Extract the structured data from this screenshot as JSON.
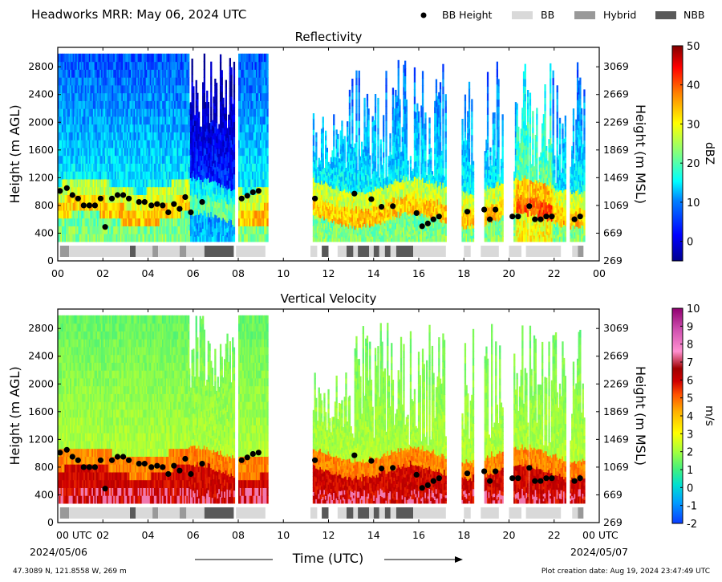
{
  "header": {
    "title": "Headworks MRR:  May 06, 2024 UTC",
    "legend": [
      {
        "label": "BB Height",
        "symbol": "dot",
        "color": "#000000"
      },
      {
        "label": "BB",
        "symbol": "box",
        "color": "#d9d9d9"
      },
      {
        "label": "Hybrid",
        "symbol": "box",
        "color": "#999999"
      },
      {
        "label": "NBB",
        "symbol": "box",
        "color": "#595959"
      }
    ]
  },
  "footer": {
    "location": "47.3089 N, 121.8558 W, 269 m",
    "created": "Plot creation date: Aug 19, 2024 23:47:49 UTC",
    "xlabel": "Time (UTC)",
    "start_date": "2024/05/06",
    "end_date": "2024/05/07"
  },
  "chart_data": [
    {
      "type": "heatmap",
      "title": "Reflectivity",
      "xlabel": "Time (UTC)",
      "ylabel": "Height (m AGL)",
      "ylabel_right": "Height (m MSL)",
      "colorbar_label": "dBZ",
      "x_ticks": [
        "00",
        "02",
        "04",
        "06",
        "08",
        "10",
        "12",
        "14",
        "16",
        "18",
        "20",
        "22",
        "00"
      ],
      "x_range": [
        0,
        24
      ],
      "y_range": [
        0,
        3000
      ],
      "y_ticks": [
        0,
        400,
        800,
        1200,
        1600,
        2000,
        2400,
        2800
      ],
      "y_ticks_right": [
        269,
        669,
        1069,
        1469,
        1869,
        2269,
        2669,
        3069
      ],
      "colorbar_ticks": [
        0,
        10,
        20,
        30,
        40,
        50
      ],
      "colorbar_range": [
        -5,
        50
      ],
      "data_segments_hours": [
        [
          0,
          5.8
        ],
        [
          5.8,
          7.8
        ],
        [
          8.0,
          9.3
        ],
        [
          11.3,
          12.9
        ],
        [
          12.9,
          17.2
        ],
        [
          17.9,
          18.4
        ],
        [
          18.9,
          19.7
        ],
        [
          20.2,
          20.8
        ],
        [
          20.9,
          22.5
        ],
        [
          22.7,
          23.3
        ]
      ]
    },
    {
      "type": "heatmap",
      "title": "Vertical Velocity",
      "xlabel": "Time (UTC)",
      "ylabel": "Height (m AGL)",
      "ylabel_right": "Height (m MSL)",
      "colorbar_label": "m/s",
      "x_ticks": [
        "00 UTC",
        "02",
        "04",
        "06",
        "08",
        "10",
        "12",
        "14",
        "16",
        "18",
        "20",
        "22",
        "00 UTC"
      ],
      "x_range": [
        0,
        24
      ],
      "y_range": [
        0,
        3000
      ],
      "y_ticks": [
        0,
        400,
        800,
        1200,
        1600,
        2000,
        2400,
        2800
      ],
      "y_ticks_right": [
        269,
        669,
        1069,
        1469,
        1869,
        2269,
        2669,
        3069
      ],
      "colorbar_ticks": [
        -2,
        -1,
        0,
        1,
        2,
        3,
        4,
        5,
        6,
        7,
        8,
        9,
        10
      ],
      "colorbar_range": [
        -2,
        10
      ],
      "data_segments_hours": [
        [
          0,
          5.8
        ],
        [
          5.8,
          7.8
        ],
        [
          8.0,
          9.3
        ],
        [
          11.3,
          12.9
        ],
        [
          12.9,
          17.2
        ],
        [
          17.9,
          18.4
        ],
        [
          18.9,
          19.7
        ],
        [
          20.2,
          20.8
        ],
        [
          20.9,
          22.5
        ],
        [
          22.7,
          23.3
        ]
      ]
    }
  ],
  "bb_height_points": [
    {
      "t": 0.1,
      "h": 1010
    },
    {
      "t": 0.4,
      "h": 1050
    },
    {
      "t": 0.65,
      "h": 950
    },
    {
      "t": 0.9,
      "h": 900
    },
    {
      "t": 1.15,
      "h": 800
    },
    {
      "t": 1.4,
      "h": 800
    },
    {
      "t": 1.65,
      "h": 800
    },
    {
      "t": 1.9,
      "h": 900
    },
    {
      "t": 2.1,
      "h": 490
    },
    {
      "t": 2.4,
      "h": 900
    },
    {
      "t": 2.65,
      "h": 950
    },
    {
      "t": 2.9,
      "h": 950
    },
    {
      "t": 3.15,
      "h": 900
    },
    {
      "t": 3.6,
      "h": 850
    },
    {
      "t": 3.85,
      "h": 850
    },
    {
      "t": 4.15,
      "h": 800
    },
    {
      "t": 4.4,
      "h": 820
    },
    {
      "t": 4.65,
      "h": 800
    },
    {
      "t": 4.9,
      "h": 700
    },
    {
      "t": 5.15,
      "h": 820
    },
    {
      "t": 5.4,
      "h": 750
    },
    {
      "t": 5.65,
      "h": 920
    },
    {
      "t": 5.9,
      "h": 700
    },
    {
      "t": 6.4,
      "h": 850
    },
    {
      "t": 8.15,
      "h": 900
    },
    {
      "t": 8.4,
      "h": 940
    },
    {
      "t": 8.65,
      "h": 990
    },
    {
      "t": 8.9,
      "h": 1010
    },
    {
      "t": 11.4,
      "h": 900
    },
    {
      "t": 13.15,
      "h": 970
    },
    {
      "t": 13.9,
      "h": 890
    },
    {
      "t": 14.35,
      "h": 780
    },
    {
      "t": 14.85,
      "h": 790
    },
    {
      "t": 15.9,
      "h": 690
    },
    {
      "t": 16.15,
      "h": 500
    },
    {
      "t": 16.4,
      "h": 540
    },
    {
      "t": 16.65,
      "h": 600
    },
    {
      "t": 16.9,
      "h": 640
    },
    {
      "t": 18.15,
      "h": 710
    },
    {
      "t": 18.9,
      "h": 740
    },
    {
      "t": 19.15,
      "h": 600
    },
    {
      "t": 19.4,
      "h": 740
    },
    {
      "t": 20.15,
      "h": 640
    },
    {
      "t": 20.4,
      "h": 640
    },
    {
      "t": 20.9,
      "h": 790
    },
    {
      "t": 21.15,
      "h": 600
    },
    {
      "t": 21.4,
      "h": 600
    },
    {
      "t": 21.65,
      "h": 640
    },
    {
      "t": 21.9,
      "h": 640
    },
    {
      "t": 22.9,
      "h": 600
    },
    {
      "t": 23.15,
      "h": 640
    }
  ],
  "classification_bars": [
    {
      "start": 0.1,
      "end": 0.5,
      "cls": "Hybrid"
    },
    {
      "start": 0.5,
      "end": 3.2,
      "cls": "BB"
    },
    {
      "start": 3.2,
      "end": 3.45,
      "cls": "NBB"
    },
    {
      "start": 3.45,
      "end": 4.2,
      "cls": "BB"
    },
    {
      "start": 4.2,
      "end": 4.45,
      "cls": "Hybrid"
    },
    {
      "start": 4.45,
      "end": 5.4,
      "cls": "BB"
    },
    {
      "start": 5.4,
      "end": 5.7,
      "cls": "Hybrid"
    },
    {
      "start": 5.7,
      "end": 6.5,
      "cls": "BB"
    },
    {
      "start": 6.5,
      "end": 7.8,
      "cls": "NBB"
    },
    {
      "start": 7.9,
      "end": 9.2,
      "cls": "BB"
    },
    {
      "start": 11.2,
      "end": 11.5,
      "cls": "BB"
    },
    {
      "start": 11.7,
      "end": 12.0,
      "cls": "NBB"
    },
    {
      "start": 12.4,
      "end": 12.8,
      "cls": "BB"
    },
    {
      "start": 12.8,
      "end": 13.1,
      "cls": "NBB"
    },
    {
      "start": 13.1,
      "end": 13.3,
      "cls": "BB"
    },
    {
      "start": 13.3,
      "end": 13.8,
      "cls": "NBB"
    },
    {
      "start": 13.8,
      "end": 14.0,
      "cls": "BB"
    },
    {
      "start": 14.0,
      "end": 14.25,
      "cls": "NBB"
    },
    {
      "start": 14.25,
      "end": 14.5,
      "cls": "BB"
    },
    {
      "start": 14.5,
      "end": 14.75,
      "cls": "NBB"
    },
    {
      "start": 14.75,
      "end": 15.0,
      "cls": "BB"
    },
    {
      "start": 15.0,
      "end": 15.75,
      "cls": "NBB"
    },
    {
      "start": 15.75,
      "end": 17.2,
      "cls": "BB"
    },
    {
      "start": 18.0,
      "end": 18.3,
      "cls": "BB"
    },
    {
      "start": 18.75,
      "end": 19.55,
      "cls": "BB"
    },
    {
      "start": 20.0,
      "end": 20.55,
      "cls": "BB"
    },
    {
      "start": 20.75,
      "end": 22.3,
      "cls": "BB"
    },
    {
      "start": 22.8,
      "end": 23.05,
      "cls": "BB"
    },
    {
      "start": 23.05,
      "end": 23.3,
      "cls": "Hybrid"
    }
  ],
  "colors": {
    "BB": "#d9d9d9",
    "Hybrid": "#999999",
    "NBB": "#595959",
    "dbz_scale": [
      "#00008f",
      "#0000ff",
      "#0080ff",
      "#00ffff",
      "#80ff80",
      "#ffff00",
      "#ff8000",
      "#ff0000",
      "#800000"
    ],
    "vel_scale": [
      "#0a3cff",
      "#00a0ff",
      "#00e0d0",
      "#40f080",
      "#a0ff40",
      "#ffff00",
      "#ffb000",
      "#ff5000",
      "#d00000",
      "#a00000",
      "#ff90d0",
      "#d050b0",
      "#900070"
    ]
  }
}
